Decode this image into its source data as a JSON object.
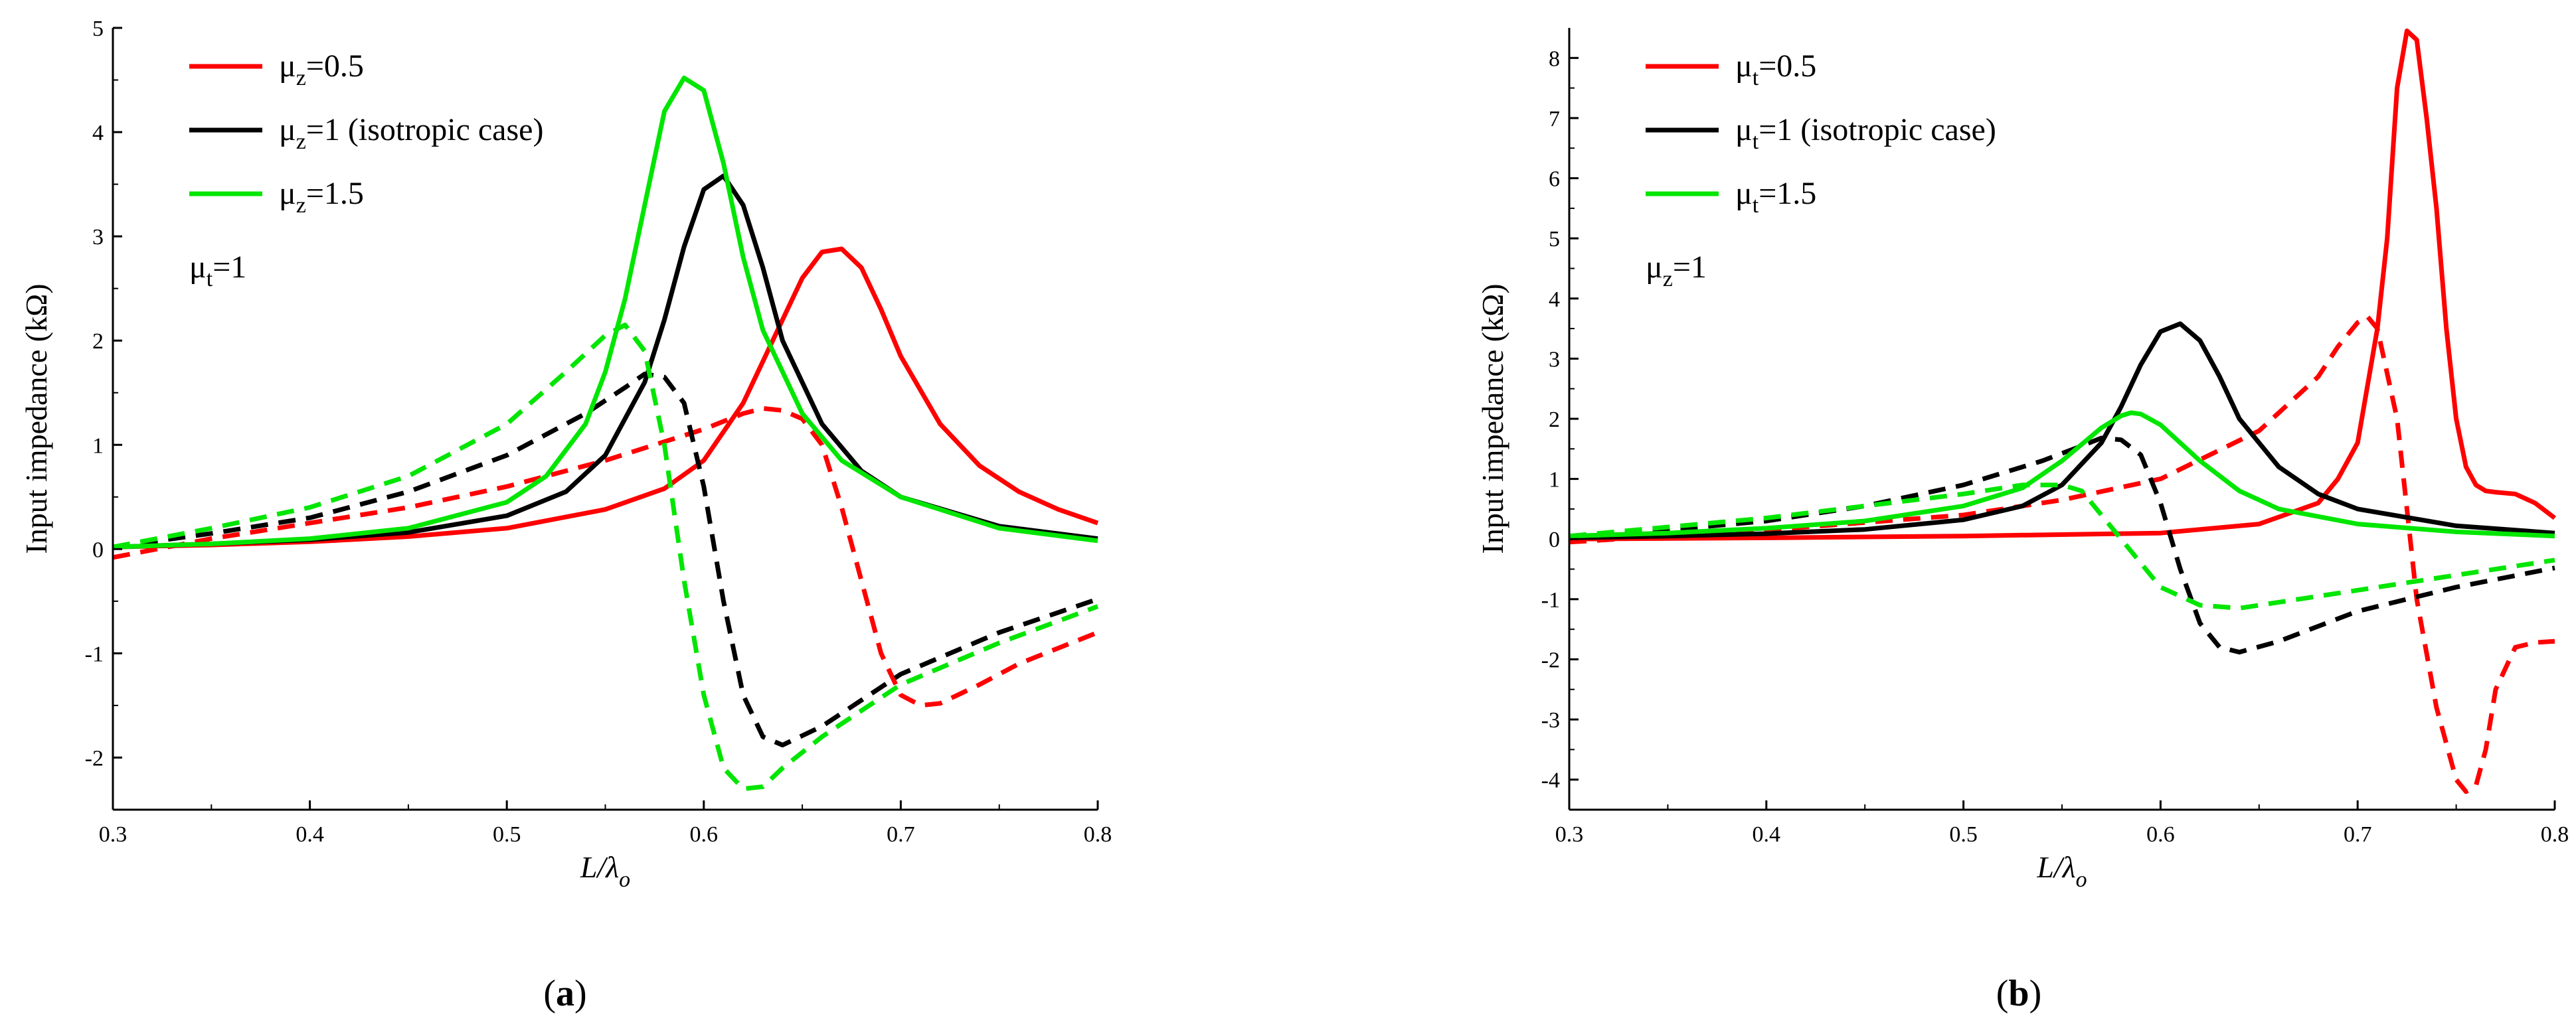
{
  "chart_data": [
    {
      "type": "line",
      "panel_label": "a",
      "xlabel_base": "L/λ",
      "xlabel_sub": "o",
      "ylabel": "Input impedance (kΩ)",
      "xlim": [
        0.3,
        0.8
      ],
      "ylim": [
        -2.5,
        5
      ],
      "xticks": [
        0.3,
        0.4,
        0.5,
        0.6,
        0.7,
        0.8
      ],
      "xtick_labels": [
        "0.3",
        "0.4",
        "0.5",
        "0.6",
        "0.7",
        "0.8"
      ],
      "yticks": [
        -2,
        -1,
        0,
        1,
        2,
        3,
        4,
        5
      ],
      "ytick_labels": [
        "-2",
        "-1",
        "0",
        "1",
        "2",
        "3",
        "4",
        "5"
      ],
      "legend": [
        {
          "base": "μ",
          "sub": "z",
          "rest": "=0.5",
          "color": "#ff0000"
        },
        {
          "base": "μ",
          "sub": "z",
          "rest": "=1 (isotropic case)",
          "color": "#000000"
        },
        {
          "base": "μ",
          "sub": "z",
          "rest": "=1.5",
          "color": "#00e600"
        }
      ],
      "annotation": {
        "base": "μ",
        "sub": "t",
        "rest": "=1"
      },
      "series": [
        {
          "name": "μz=0.5 real",
          "color": "#ff0000",
          "dash": false,
          "x": [
            0.3,
            0.35,
            0.4,
            0.45,
            0.5,
            0.55,
            0.58,
            0.6,
            0.62,
            0.64,
            0.65,
            0.66,
            0.67,
            0.68,
            0.69,
            0.7,
            0.72,
            0.74,
            0.76,
            0.78,
            0.8
          ],
          "y": [
            0.02,
            0.04,
            0.07,
            0.12,
            0.2,
            0.38,
            0.58,
            0.85,
            1.4,
            2.2,
            2.6,
            2.85,
            2.88,
            2.7,
            2.3,
            1.85,
            1.2,
            0.8,
            0.55,
            0.38,
            0.25
          ]
        },
        {
          "name": "μz=0.5 imag",
          "color": "#ff0000",
          "dash": true,
          "x": [
            0.3,
            0.35,
            0.4,
            0.45,
            0.5,
            0.55,
            0.6,
            0.62,
            0.63,
            0.64,
            0.65,
            0.66,
            0.67,
            0.68,
            0.69,
            0.7,
            0.71,
            0.72,
            0.74,
            0.76,
            0.78,
            0.8
          ],
          "y": [
            -0.08,
            0.1,
            0.25,
            0.4,
            0.6,
            0.85,
            1.15,
            1.3,
            1.35,
            1.33,
            1.25,
            1.0,
            0.4,
            -0.3,
            -1.0,
            -1.4,
            -1.5,
            -1.48,
            -1.3,
            -1.1,
            -0.95,
            -0.8
          ]
        },
        {
          "name": "μz=1 real",
          "color": "#000000",
          "dash": false,
          "x": [
            0.3,
            0.35,
            0.4,
            0.45,
            0.5,
            0.53,
            0.55,
            0.57,
            0.58,
            0.59,
            0.6,
            0.61,
            0.62,
            0.63,
            0.64,
            0.66,
            0.68,
            0.7,
            0.75,
            0.8
          ],
          "y": [
            0.02,
            0.05,
            0.09,
            0.16,
            0.32,
            0.55,
            0.9,
            1.6,
            2.2,
            2.9,
            3.45,
            3.58,
            3.3,
            2.7,
            2.0,
            1.2,
            0.75,
            0.5,
            0.22,
            0.1
          ]
        },
        {
          "name": "μz=1 imag",
          "color": "#000000",
          "dash": true,
          "x": [
            0.3,
            0.35,
            0.4,
            0.45,
            0.5,
            0.54,
            0.56,
            0.57,
            0.58,
            0.59,
            0.6,
            0.61,
            0.62,
            0.63,
            0.64,
            0.66,
            0.68,
            0.7,
            0.75,
            0.8
          ],
          "y": [
            0.02,
            0.15,
            0.3,
            0.55,
            0.9,
            1.3,
            1.55,
            1.68,
            1.65,
            1.4,
            0.6,
            -0.5,
            -1.4,
            -1.8,
            -1.88,
            -1.7,
            -1.45,
            -1.2,
            -0.8,
            -0.48
          ]
        },
        {
          "name": "μz=1.5 real",
          "color": "#00e600",
          "dash": false,
          "x": [
            0.3,
            0.35,
            0.4,
            0.45,
            0.5,
            0.52,
            0.54,
            0.55,
            0.56,
            0.57,
            0.58,
            0.59,
            0.6,
            0.61,
            0.62,
            0.63,
            0.65,
            0.67,
            0.7,
            0.75,
            0.8
          ],
          "y": [
            0.02,
            0.05,
            0.1,
            0.2,
            0.45,
            0.7,
            1.2,
            1.7,
            2.4,
            3.3,
            4.2,
            4.52,
            4.4,
            3.7,
            2.8,
            2.1,
            1.3,
            0.85,
            0.5,
            0.2,
            0.08
          ]
        },
        {
          "name": "μz=1.5 imag",
          "color": "#00e600",
          "dash": true,
          "x": [
            0.3,
            0.35,
            0.4,
            0.45,
            0.5,
            0.53,
            0.55,
            0.56,
            0.57,
            0.58,
            0.59,
            0.6,
            0.61,
            0.62,
            0.63,
            0.64,
            0.66,
            0.7,
            0.75,
            0.8
          ],
          "y": [
            0.02,
            0.2,
            0.4,
            0.7,
            1.2,
            1.7,
            2.05,
            2.15,
            1.9,
            1.0,
            -0.3,
            -1.4,
            -2.1,
            -2.3,
            -2.28,
            -2.1,
            -1.8,
            -1.3,
            -0.9,
            -0.55
          ]
        }
      ]
    },
    {
      "type": "line",
      "panel_label": "b",
      "xlabel_base": "L/λ",
      "xlabel_sub": "o",
      "ylabel": "Input impedance (kΩ)",
      "xlim": [
        0.3,
        0.8
      ],
      "ylim": [
        -4.5,
        8.5
      ],
      "xticks": [
        0.3,
        0.4,
        0.5,
        0.6,
        0.7,
        0.8
      ],
      "xtick_labels": [
        "0.3",
        "0.4",
        "0.5",
        "0.6",
        "0.7",
        "0.8"
      ],
      "yticks": [
        -4,
        -3,
        -2,
        -1,
        0,
        1,
        2,
        3,
        4,
        5,
        6,
        7,
        8
      ],
      "ytick_labels": [
        "-4",
        "-3",
        "-2",
        "-1",
        "0",
        "1",
        "2",
        "3",
        "4",
        "5",
        "6",
        "7",
        "8"
      ],
      "legend": [
        {
          "base": "μ",
          "sub": "t",
          "rest": "=0.5",
          "color": "#ff0000"
        },
        {
          "base": "μ",
          "sub": "t",
          "rest": "=1 (isotropic case)",
          "color": "#000000"
        },
        {
          "base": "μ",
          "sub": "t",
          "rest": "=1.5",
          "color": "#00e600"
        }
      ],
      "annotation": {
        "base": "μ",
        "sub": "z",
        "rest": "=1"
      },
      "series": [
        {
          "name": "μt=0.5 real",
          "color": "#ff0000",
          "dash": false,
          "x": [
            0.3,
            0.4,
            0.5,
            0.6,
            0.65,
            0.68,
            0.69,
            0.7,
            0.71,
            0.715,
            0.72,
            0.725,
            0.73,
            0.735,
            0.74,
            0.745,
            0.75,
            0.755,
            0.76,
            0.765,
            0.77,
            0.78,
            0.79,
            0.8
          ],
          "y": [
            0.0,
            0.02,
            0.05,
            0.1,
            0.25,
            0.6,
            1.0,
            1.6,
            3.5,
            5.0,
            7.5,
            8.45,
            8.3,
            7.0,
            5.5,
            3.5,
            2.0,
            1.2,
            0.9,
            0.8,
            0.78,
            0.75,
            0.6,
            0.35
          ]
        },
        {
          "name": "μt=0.5 imag",
          "color": "#ff0000",
          "dash": true,
          "x": [
            0.3,
            0.4,
            0.5,
            0.55,
            0.6,
            0.65,
            0.68,
            0.69,
            0.7,
            0.705,
            0.71,
            0.72,
            0.725,
            0.73,
            0.74,
            0.75,
            0.755,
            0.76,
            0.765,
            0.77,
            0.78,
            0.79,
            0.8
          ],
          "y": [
            -0.05,
            0.15,
            0.4,
            0.65,
            1.0,
            1.8,
            2.7,
            3.2,
            3.6,
            3.7,
            3.5,
            2.0,
            0.5,
            -1.0,
            -2.8,
            -4.0,
            -4.2,
            -4.1,
            -3.5,
            -2.5,
            -1.8,
            -1.72,
            -1.7
          ]
        },
        {
          "name": "μt=1 real",
          "color": "#000000",
          "dash": false,
          "x": [
            0.3,
            0.35,
            0.4,
            0.45,
            0.5,
            0.53,
            0.55,
            0.57,
            0.58,
            0.59,
            0.6,
            0.61,
            0.62,
            0.63,
            0.64,
            0.66,
            0.68,
            0.7,
            0.75,
            0.8
          ],
          "y": [
            0.02,
            0.05,
            0.09,
            0.16,
            0.32,
            0.55,
            0.9,
            1.6,
            2.2,
            2.9,
            3.45,
            3.58,
            3.3,
            2.7,
            2.0,
            1.2,
            0.75,
            0.5,
            0.22,
            0.1
          ]
        },
        {
          "name": "μt=1 imag",
          "color": "#000000",
          "dash": true,
          "x": [
            0.3,
            0.35,
            0.4,
            0.45,
            0.5,
            0.54,
            0.56,
            0.57,
            0.58,
            0.59,
            0.6,
            0.61,
            0.62,
            0.63,
            0.64,
            0.66,
            0.68,
            0.7,
            0.75,
            0.8
          ],
          "y": [
            0.02,
            0.15,
            0.3,
            0.55,
            0.9,
            1.3,
            1.55,
            1.68,
            1.65,
            1.4,
            0.6,
            -0.5,
            -1.4,
            -1.8,
            -1.88,
            -1.7,
            -1.45,
            -1.2,
            -0.8,
            -0.48
          ]
        },
        {
          "name": "μt=1.5 real",
          "color": "#00e600",
          "dash": false,
          "x": [
            0.3,
            0.35,
            0.4,
            0.45,
            0.5,
            0.53,
            0.55,
            0.57,
            0.58,
            0.585,
            0.59,
            0.6,
            0.62,
            0.64,
            0.66,
            0.7,
            0.75,
            0.8
          ],
          "y": [
            0.05,
            0.1,
            0.18,
            0.3,
            0.55,
            0.85,
            1.3,
            1.85,
            2.05,
            2.1,
            2.08,
            1.9,
            1.3,
            0.8,
            0.5,
            0.25,
            0.12,
            0.05
          ]
        },
        {
          "name": "μt=1.5 imag",
          "color": "#00e600",
          "dash": true,
          "x": [
            0.3,
            0.35,
            0.4,
            0.45,
            0.5,
            0.53,
            0.55,
            0.56,
            0.57,
            0.58,
            0.59,
            0.6,
            0.62,
            0.64,
            0.66,
            0.7,
            0.75,
            0.8
          ],
          "y": [
            0.05,
            0.2,
            0.35,
            0.55,
            0.75,
            0.9,
            0.9,
            0.8,
            0.4,
            0.0,
            -0.4,
            -0.8,
            -1.1,
            -1.15,
            -1.05,
            -0.85,
            -0.6,
            -0.35
          ]
        }
      ]
    }
  ]
}
